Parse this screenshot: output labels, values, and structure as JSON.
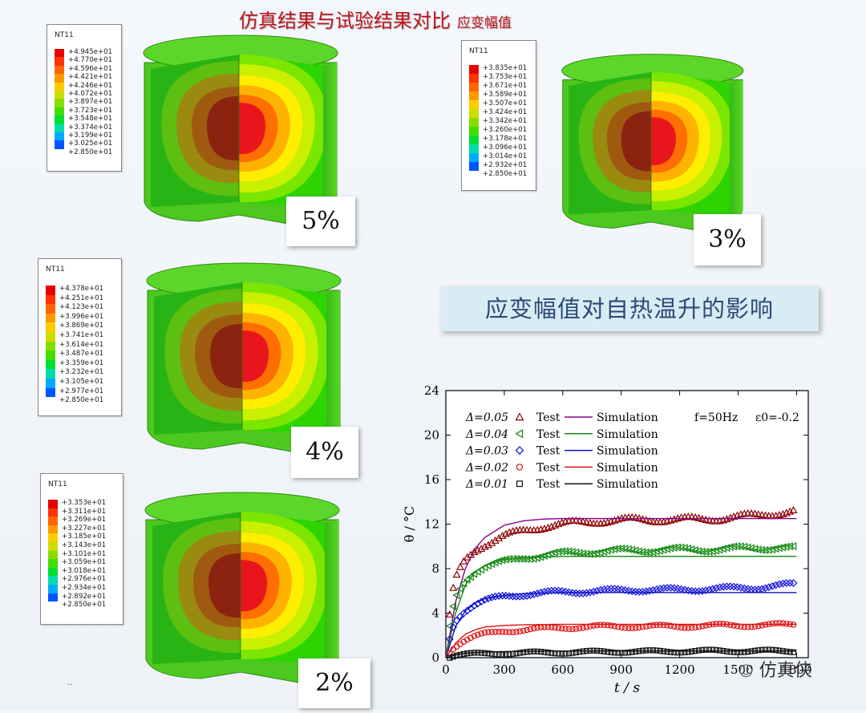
{
  "title": "仿真结果与试验结果对比",
  "title_sub": "应变幅值",
  "banner": "应变幅值对自热温升的影响",
  "watermark": "仿真侠",
  "footnote": "..",
  "colors": {
    "title": "#c0161c",
    "banner_bg": "#d8ecf3",
    "banner_text": "#2b4a78",
    "contour": [
      "#8b0000",
      "#e8161c",
      "#ff6e00",
      "#ffb300",
      "#ffee00",
      "#c8f000",
      "#7be600",
      "#2dd400"
    ]
  },
  "panels": [
    {
      "label": "5%",
      "legend_title": "NT11",
      "values": [
        "+4.945e+01",
        "+4.770e+01",
        "+4.596e+01",
        "+4.421e+01",
        "+4.246e+01",
        "+4.072e+01",
        "+3.897e+01",
        "+3.723e+01",
        "+3.548e+01",
        "+3.374e+01",
        "+3.199e+01",
        "+3.025e+01",
        "+2.850e+01"
      ]
    },
    {
      "label": "3%",
      "legend_title": "NT11",
      "values": [
        "+3.835e+01",
        "+3.753e+01",
        "+3.671e+01",
        "+3.589e+01",
        "+3.507e+01",
        "+3.424e+01",
        "+3.342e+01",
        "+3.260e+01",
        "+3.178e+01",
        "+3.096e+01",
        "+3.014e+01",
        "+2.932e+01",
        "+2.850e+01"
      ]
    },
    {
      "label": "4%",
      "legend_title": "NT11",
      "values": [
        "+4.378e+01",
        "+4.251e+01",
        "+4.123e+01",
        "+3.996e+01",
        "+3.869e+01",
        "+3.741e+01",
        "+3.614e+01",
        "+3.487e+01",
        "+3.359e+01",
        "+3.232e+01",
        "+3.105e+01",
        "+2.977e+01",
        "+2.850e+01"
      ]
    },
    {
      "label": "2%",
      "legend_title": "NT11",
      "values": [
        "+3.353e+01",
        "+3.311e+01",
        "+3.269e+01",
        "+3.227e+01",
        "+3.185e+01",
        "+3.143e+01",
        "+3.101e+01",
        "+3.059e+01",
        "+3.018e+01",
        "+2.976e+01",
        "+2.934e+01",
        "+2.892e+01",
        "+2.850e+01"
      ]
    }
  ],
  "legend_colors": [
    "#e60000",
    "#ff3300",
    "#ff6600",
    "#ff9900",
    "#ffcc00",
    "#ccdd00",
    "#88dd00",
    "#44dd00",
    "#00dd33",
    "#00ddaa",
    "#00aaff",
    "#0055ff",
    "#0000ff"
  ],
  "chart_data": {
    "type": "scatter",
    "xlabel": "t / s",
    "ylabel": "θ / °C",
    "xlim": [
      0,
      1860
    ],
    "ylim": [
      0,
      24
    ],
    "xticks": [
      "0",
      "300",
      "600",
      "900",
      "1200",
      "1500",
      "1800"
    ],
    "yticks": [
      "0",
      "4",
      "8",
      "12",
      "16",
      "20",
      "24"
    ],
    "annotation_f": "f=50Hz",
    "annotation_eps": "ε0=-0.2",
    "test_label": "Test",
    "sim_label": "Simulation",
    "series": [
      {
        "name": "Δ=0.05",
        "color": "#8b0000",
        "line_color": "#8b008b",
        "marker": "triangle-up",
        "test": [
          [
            0,
            0
          ],
          [
            30,
            5.5
          ],
          [
            60,
            7.5
          ],
          [
            100,
            8.8
          ],
          [
            150,
            9.7
          ],
          [
            200,
            10.2
          ],
          [
            300,
            10.9
          ],
          [
            400,
            11.4
          ],
          [
            500,
            11.8
          ],
          [
            600,
            12.0
          ],
          [
            800,
            12.3
          ],
          [
            1000,
            12.4
          ],
          [
            1200,
            12.4
          ],
          [
            1400,
            12.5
          ],
          [
            1600,
            12.8
          ],
          [
            1800,
            13.2
          ]
        ],
        "sim": [
          [
            0,
            0
          ],
          [
            50,
            5
          ],
          [
            100,
            8
          ],
          [
            150,
            9.8
          ],
          [
            200,
            10.8
          ],
          [
            300,
            11.9
          ],
          [
            400,
            12.3
          ],
          [
            500,
            12.45
          ],
          [
            600,
            12.5
          ],
          [
            1800,
            12.5
          ]
        ]
      },
      {
        "name": "Δ=0.04",
        "color": "#118811",
        "line_color": "#118811",
        "marker": "triangle-left",
        "test": [
          [
            0,
            0
          ],
          [
            30,
            4
          ],
          [
            60,
            5.8
          ],
          [
            100,
            7
          ],
          [
            150,
            7.8
          ],
          [
            200,
            8.2
          ],
          [
            300,
            8.6
          ],
          [
            400,
            9.0
          ],
          [
            500,
            9.2
          ],
          [
            700,
            9.5
          ],
          [
            900,
            9.6
          ],
          [
            1100,
            9.7
          ],
          [
            1300,
            9.7
          ],
          [
            1500,
            9.8
          ],
          [
            1700,
            9.9
          ],
          [
            1800,
            9.8
          ]
        ],
        "sim": [
          [
            0,
            0
          ],
          [
            50,
            4
          ],
          [
            100,
            6.5
          ],
          [
            150,
            7.7
          ],
          [
            200,
            8.3
          ],
          [
            300,
            8.8
          ],
          [
            400,
            9.0
          ],
          [
            600,
            9.1
          ],
          [
            1800,
            9.1
          ]
        ]
      },
      {
        "name": "Δ=0.03",
        "color": "#1111dd",
        "line_color": "#1111bb",
        "marker": "diamond",
        "test": [
          [
            0,
            0
          ],
          [
            30,
            2.5
          ],
          [
            60,
            3.6
          ],
          [
            100,
            4.3
          ],
          [
            150,
            4.8
          ],
          [
            200,
            5.1
          ],
          [
            300,
            5.5
          ],
          [
            400,
            5.7
          ],
          [
            600,
            5.9
          ],
          [
            800,
            6.0
          ],
          [
            1000,
            6.1
          ],
          [
            1200,
            6.1
          ],
          [
            1400,
            6.2
          ],
          [
            1600,
            6.3
          ],
          [
            1800,
            6.6
          ]
        ],
        "sim": [
          [
            0,
            0
          ],
          [
            50,
            2.8
          ],
          [
            100,
            4.2
          ],
          [
            150,
            4.9
          ],
          [
            200,
            5.3
          ],
          [
            300,
            5.6
          ],
          [
            400,
            5.75
          ],
          [
            600,
            5.85
          ],
          [
            1800,
            5.85
          ]
        ]
      },
      {
        "name": "Δ=0.02",
        "color": "#dd1111",
        "line_color": "#dd1111",
        "marker": "circle",
        "test": [
          [
            0,
            0
          ],
          [
            30,
            0.8
          ],
          [
            60,
            1.2
          ],
          [
            100,
            1.6
          ],
          [
            150,
            1.9
          ],
          [
            200,
            2.1
          ],
          [
            300,
            2.4
          ],
          [
            400,
            2.5
          ],
          [
            600,
            2.7
          ],
          [
            800,
            2.8
          ],
          [
            1000,
            2.8
          ],
          [
            1200,
            2.8
          ],
          [
            1400,
            2.9
          ],
          [
            1600,
            2.9
          ],
          [
            1800,
            3.0
          ]
        ],
        "sim": [
          [
            0,
            0
          ],
          [
            50,
            1.3
          ],
          [
            100,
            2.1
          ],
          [
            150,
            2.5
          ],
          [
            200,
            2.75
          ],
          [
            300,
            2.9
          ],
          [
            400,
            2.95
          ],
          [
            600,
            3.0
          ],
          [
            1800,
            3.0
          ]
        ]
      },
      {
        "name": "Δ=0.01",
        "color": "#111111",
        "line_color": "#111111",
        "marker": "square",
        "test": [
          [
            0,
            0
          ],
          [
            30,
            0.15
          ],
          [
            60,
            0.25
          ],
          [
            100,
            0.3
          ],
          [
            200,
            0.35
          ],
          [
            300,
            0.4
          ],
          [
            500,
            0.45
          ],
          [
            700,
            0.5
          ],
          [
            900,
            0.55
          ],
          [
            1100,
            0.55
          ],
          [
            1300,
            0.6
          ],
          [
            1500,
            0.6
          ],
          [
            1700,
            0.6
          ],
          [
            1800,
            0.6
          ]
        ],
        "sim": [
          [
            0,
            0
          ],
          [
            50,
            0.25
          ],
          [
            100,
            0.4
          ],
          [
            200,
            0.5
          ],
          [
            300,
            0.55
          ],
          [
            600,
            0.6
          ],
          [
            1800,
            0.6
          ]
        ]
      }
    ]
  }
}
